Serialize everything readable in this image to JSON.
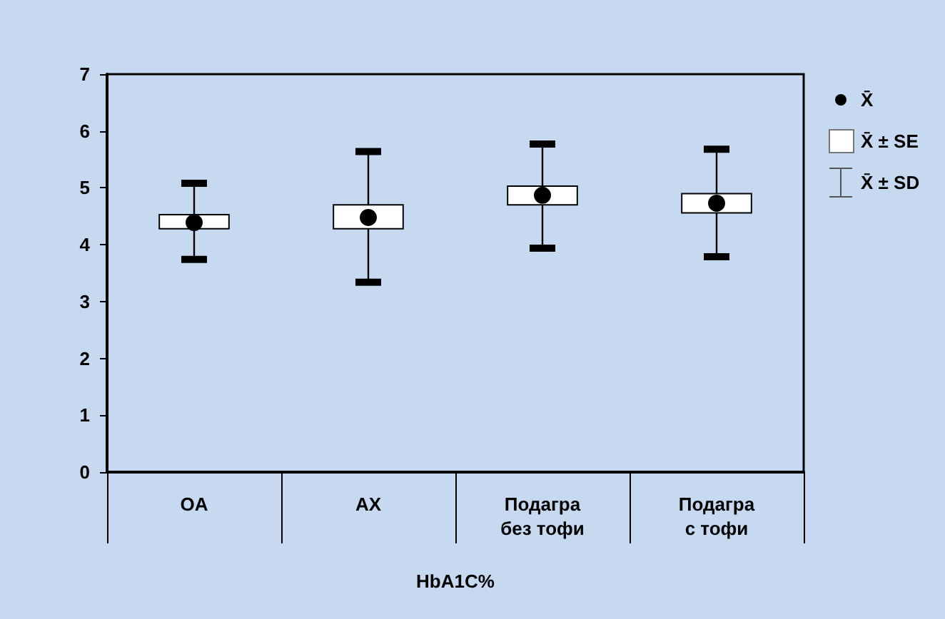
{
  "chart_data": {
    "type": "box",
    "xlabel": "HbA1C%",
    "categories": [
      "OA",
      "AX",
      "Подагра\nбез тофи",
      "Подагра\nс тофи"
    ],
    "ylim": [
      0,
      7
    ],
    "yticks": [
      0,
      1,
      2,
      3,
      4,
      5,
      6,
      7
    ],
    "boxes": [
      {
        "low": 3.74,
        "q1": 4.28,
        "median": 4.39,
        "q3": 4.53,
        "high": 5.08
      },
      {
        "low": 3.34,
        "q1": 4.28,
        "median": 4.48,
        "q3": 4.7,
        "high": 5.64
      },
      {
        "low": 3.94,
        "q1": 4.7,
        "median": 4.87,
        "q3": 5.03,
        "high": 5.77
      },
      {
        "low": 3.79,
        "q1": 4.56,
        "median": 4.73,
        "q3": 4.9,
        "high": 5.68
      }
    ],
    "annotations": [
      "X̄",
      "X̄ ± SE",
      "X̄ ± SD"
    ]
  }
}
